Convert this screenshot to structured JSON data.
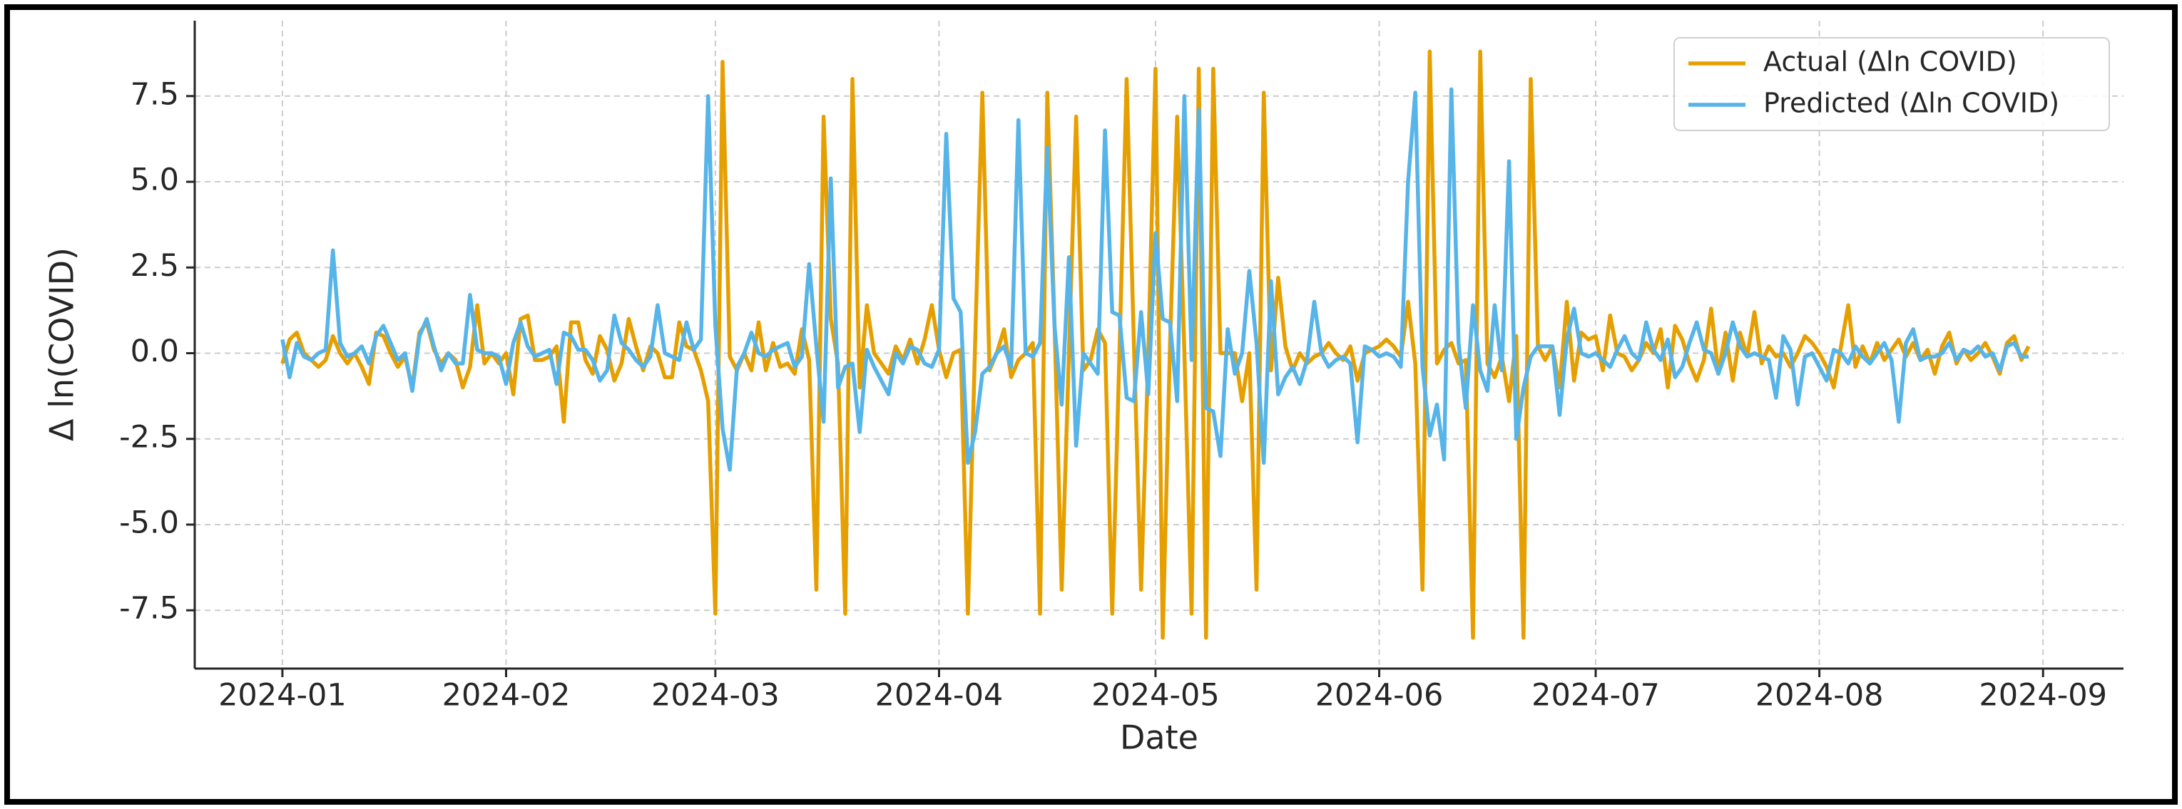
{
  "chart_data": {
    "type": "line",
    "x_label": "Date",
    "y_label": "Δ ln(COVID)",
    "x": [
      0,
      1,
      2,
      3,
      4,
      5,
      6,
      7,
      8,
      9,
      10,
      11,
      12,
      13,
      14,
      15,
      16,
      17,
      18,
      19,
      20,
      21,
      22,
      23,
      24,
      25,
      26,
      27,
      28,
      29,
      30,
      31,
      32,
      33,
      34,
      35,
      36,
      37,
      38,
      39,
      40,
      41,
      42,
      43,
      44,
      45,
      46,
      47,
      48,
      49,
      50,
      51,
      52,
      53,
      54,
      55,
      56,
      57,
      58,
      59,
      60,
      61,
      62,
      63,
      64,
      65,
      66,
      67,
      68,
      69,
      70,
      71,
      72,
      73,
      74,
      75,
      76,
      77,
      78,
      79,
      80,
      81,
      82,
      83,
      84,
      85,
      86,
      87,
      88,
      89,
      90,
      91,
      92,
      93,
      94,
      95,
      96,
      97,
      98,
      99,
      100,
      101,
      102,
      103,
      104,
      105,
      106,
      107,
      108,
      109,
      110,
      111,
      112,
      113,
      114,
      115,
      116,
      117,
      118,
      119,
      120,
      121,
      122,
      123,
      124,
      125,
      126,
      127,
      128,
      129,
      130,
      131,
      132,
      133,
      134,
      135,
      136,
      137,
      138,
      139,
      140,
      141,
      142,
      143,
      144,
      145,
      146,
      147,
      148,
      149,
      150,
      151,
      152,
      153,
      154,
      155,
      156,
      157,
      158,
      159,
      160,
      161,
      162,
      163,
      164,
      165,
      166,
      167,
      168,
      169,
      170,
      171,
      172,
      173,
      174,
      175,
      176,
      177,
      178,
      179,
      180,
      181,
      182,
      183,
      184,
      185,
      186,
      187,
      188,
      189,
      190,
      191,
      192,
      193,
      194,
      195,
      196,
      197,
      198,
      199,
      200,
      201,
      202,
      203,
      204,
      205,
      206,
      207,
      208,
      209,
      210,
      211,
      212,
      213,
      214,
      215,
      216,
      217,
      218,
      219,
      220,
      221,
      222,
      223,
      224,
      225,
      226,
      227,
      228,
      229,
      230,
      231,
      232,
      233,
      234,
      235,
      236,
      237,
      238,
      239,
      240,
      241,
      242
    ],
    "series": [
      {
        "name": "Actual (Δln COVID)",
        "color": "#E69F00",
        "values": [
          -0.3,
          0.4,
          0.6,
          0.0,
          -0.2,
          -0.4,
          -0.2,
          0.5,
          0.0,
          -0.3,
          0.0,
          -0.4,
          -0.9,
          0.6,
          0.5,
          0.0,
          -0.4,
          -0.1,
          -1.0,
          0.6,
          0.9,
          0.1,
          -0.3,
          0.0,
          -0.2,
          -1.0,
          -0.4,
          1.4,
          -0.3,
          0.0,
          -0.3,
          0.0,
          -1.2,
          1.0,
          1.1,
          -0.2,
          -0.2,
          -0.1,
          0.2,
          -2.0,
          0.9,
          0.9,
          -0.2,
          -0.6,
          0.5,
          0.1,
          -0.8,
          -0.3,
          1.0,
          0.2,
          -0.5,
          0.2,
          0.0,
          -0.7,
          -0.7,
          0.9,
          0.2,
          0.1,
          -0.5,
          -1.4,
          -7.6,
          8.5,
          -0.1,
          -0.5,
          0.0,
          -0.5,
          0.9,
          -0.5,
          0.3,
          -0.4,
          -0.3,
          -0.6,
          0.7,
          -0.2,
          -6.9,
          6.9,
          1.0,
          -0.3,
          -7.6,
          8.0,
          -1.0,
          1.4,
          0.0,
          -0.3,
          -0.6,
          0.2,
          -0.2,
          0.4,
          -0.3,
          0.4,
          1.4,
          0.1,
          -0.7,
          0.0,
          0.1,
          -7.6,
          0.3,
          7.6,
          -0.5,
          0.0,
          0.7,
          -0.7,
          -0.2,
          0.0,
          0.3,
          -7.6,
          7.6,
          0.9,
          -6.9,
          0.0,
          6.9,
          -0.5,
          -0.2,
          0.7,
          0.3,
          -7.6,
          0.0,
          8.0,
          0.3,
          -6.9,
          0.0,
          8.3,
          -8.3,
          0.2,
          6.9,
          0.0,
          -7.6,
          8.3,
          -8.3,
          8.3,
          0.0,
          0.0,
          0.0,
          -1.4,
          0.0,
          -6.9,
          7.6,
          -0.5,
          2.2,
          0.2,
          -0.5,
          0.0,
          -0.3,
          -0.1,
          0.0,
          0.3,
          0.0,
          -0.2,
          0.2,
          -0.8,
          0.0,
          0.1,
          0.2,
          0.4,
          0.2,
          -0.1,
          1.5,
          -0.3,
          -6.9,
          8.8,
          -0.3,
          0.1,
          0.3,
          -0.3,
          -0.2,
          -8.3,
          8.8,
          -0.3,
          -0.7,
          -0.1,
          -1.4,
          0.5,
          -8.3,
          8.0,
          0.2,
          -0.2,
          0.2,
          -1.0,
          1.5,
          -0.8,
          0.6,
          0.4,
          0.5,
          -0.5,
          1.1,
          0.0,
          -0.1,
          -0.5,
          -0.2,
          0.3,
          0.0,
          0.7,
          -1.0,
          0.8,
          0.4,
          -0.3,
          -0.8,
          -0.2,
          1.3,
          -0.6,
          0.6,
          -0.8,
          0.6,
          -0.1,
          1.2,
          -0.3,
          0.2,
          -0.1,
          0.0,
          -0.4,
          0.0,
          0.5,
          0.3,
          0.0,
          -0.4,
          -1.0,
          0.2,
          1.4,
          -0.4,
          0.2,
          -0.3,
          0.3,
          -0.2,
          0.1,
          0.4,
          -0.1,
          0.3,
          -0.2,
          0.1,
          -0.6,
          0.2,
          0.6,
          -0.3,
          0.1,
          -0.2,
          0.0,
          0.3,
          -0.1,
          -0.6,
          0.3,
          0.5,
          -0.2,
          0.2
        ]
      },
      {
        "name": "Predicted (Δln COVID)",
        "color": "#56B4E9",
        "values": [
          0.4,
          -0.7,
          0.3,
          -0.1,
          -0.2,
          0.0,
          0.1,
          3.0,
          0.3,
          -0.1,
          0.0,
          0.2,
          -0.3,
          0.5,
          0.8,
          0.3,
          -0.2,
          0.0,
          -1.1,
          0.5,
          1.0,
          0.2,
          -0.5,
          0.0,
          -0.3,
          -0.3,
          1.7,
          0.1,
          0.0,
          0.0,
          -0.1,
          -0.9,
          0.3,
          0.9,
          0.2,
          -0.1,
          0.0,
          0.1,
          -0.9,
          0.6,
          0.5,
          0.1,
          0.1,
          -0.2,
          -0.8,
          -0.5,
          1.1,
          0.3,
          0.1,
          -0.2,
          -0.4,
          -0.1,
          1.4,
          0.0,
          -0.1,
          -0.2,
          0.9,
          0.1,
          0.4,
          7.5,
          0.8,
          -2.2,
          -3.4,
          -0.4,
          0.0,
          0.6,
          0.0,
          -0.1,
          0.1,
          0.2,
          0.3,
          -0.4,
          -0.1,
          2.6,
          0.2,
          -2.0,
          5.1,
          -1.0,
          -0.4,
          -0.3,
          -2.3,
          0.1,
          -0.4,
          -0.8,
          -1.2,
          0.0,
          -0.3,
          0.2,
          0.1,
          -0.3,
          -0.4,
          0.1,
          6.4,
          1.6,
          1.2,
          -3.2,
          -2.3,
          -0.6,
          -0.4,
          0.0,
          0.2,
          -0.4,
          6.8,
          0.0,
          -0.1,
          0.3,
          6.0,
          0.8,
          -1.5,
          2.8,
          -2.7,
          0.0,
          -0.3,
          -0.6,
          6.5,
          1.2,
          1.1,
          -1.3,
          -1.4,
          1.2,
          -1.2,
          3.5,
          1.0,
          0.9,
          -1.4,
          7.5,
          -0.2,
          7.1,
          -1.6,
          -1.7,
          -3.0,
          0.7,
          -0.6,
          0.0,
          2.4,
          0.3,
          -3.2,
          2.1,
          -1.2,
          -0.7,
          -0.4,
          -0.9,
          -0.2,
          1.5,
          0.0,
          -0.4,
          -0.2,
          -0.1,
          -0.3,
          -2.6,
          0.2,
          0.1,
          -0.1,
          0.0,
          -0.1,
          -0.4,
          5.0,
          7.6,
          -0.4,
          -2.4,
          -1.5,
          -3.1,
          7.7,
          0.3,
          -1.6,
          1.4,
          -0.5,
          -1.1,
          1.4,
          -0.5,
          5.6,
          -2.5,
          -1.0,
          -0.1,
          0.2,
          0.2,
          0.2,
          -1.8,
          0.4,
          1.3,
          0.0,
          -0.1,
          0.0,
          -0.2,
          -0.4,
          0.1,
          0.5,
          0.0,
          -0.2,
          0.9,
          0.1,
          -0.2,
          0.4,
          -0.7,
          -0.4,
          0.3,
          0.9,
          0.1,
          0.0,
          -0.6,
          0.0,
          0.9,
          0.2,
          -0.1,
          0.0,
          -0.1,
          -0.2,
          -1.3,
          0.5,
          0.1,
          -1.5,
          -0.1,
          0.0,
          -0.4,
          -0.8,
          0.1,
          0.0,
          -0.3,
          0.2,
          -0.1,
          -0.3,
          0.0,
          0.3,
          -0.2,
          -2.0,
          0.3,
          0.7,
          -0.2,
          -0.1,
          -0.1,
          0.0,
          0.3,
          -0.2,
          0.1,
          0.0,
          0.2,
          -0.1,
          0.0,
          -0.5,
          0.2,
          0.3,
          -0.1,
          -0.1
        ]
      }
    ],
    "xlim": [
      -12.15,
      255.15
    ],
    "xticks": [
      {
        "value": 0,
        "label": "2024-01"
      },
      {
        "value": 31,
        "label": "2024-02"
      },
      {
        "value": 60,
        "label": "2024-03"
      },
      {
        "value": 91,
        "label": "2024-04"
      },
      {
        "value": 121,
        "label": "2024-05"
      },
      {
        "value": 152,
        "label": "2024-06"
      },
      {
        "value": 182,
        "label": "2024-07"
      },
      {
        "value": 213,
        "label": "2024-08"
      },
      {
        "value": 244,
        "label": "2024-09"
      }
    ],
    "ylim": [
      -9.2,
      9.7
    ],
    "yticks": [
      {
        "value": -7.5,
        "label": "-7.5"
      },
      {
        "value": -5,
        "label": "-5.0"
      },
      {
        "value": -2.5,
        "label": "-2.5"
      },
      {
        "value": 0,
        "label": "0.0"
      },
      2.5,
      {
        "value": 5,
        "label": "5.0"
      },
      7.5
    ],
    "grid": true,
    "legend": "upper right"
  }
}
